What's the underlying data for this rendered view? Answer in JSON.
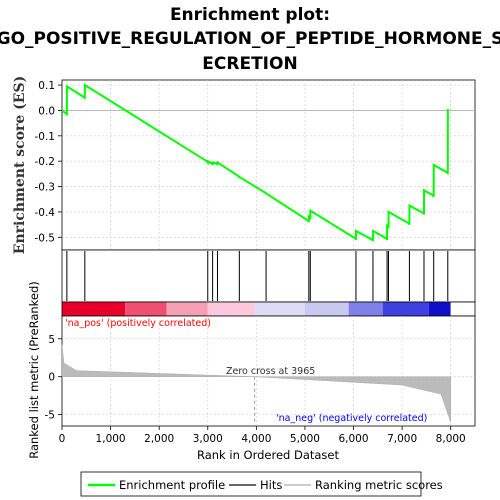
{
  "chart_data": {
    "type": "line",
    "title_line1": "Enrichment plot:",
    "title_line2": "GO_POSITIVE_REGULATION_OF_PEPTIDE_HORMONE_S",
    "title_line3": "ECRETION",
    "es_ylabel": "Enrichment score (ES)",
    "es_ylim": [
      -0.55,
      0.12
    ],
    "es_yticks": [
      "0.1",
      "0.0",
      "-0.1",
      "-0.2",
      "-0.3",
      "-0.4",
      "-0.5"
    ],
    "es_ytick_values": [
      0.1,
      0.0,
      -0.1,
      -0.2,
      -0.3,
      -0.4,
      -0.5
    ],
    "rank_ylabel": "Ranked list metric (PreRanked)",
    "rank_ylim": [
      -6.5,
      8
    ],
    "rank_yticks": [
      "5",
      "0",
      "-5"
    ],
    "rank_ytick_values": [
      5,
      0,
      -5
    ],
    "xlabel": "Rank in Ordered Dataset",
    "xlim": [
      0,
      8500
    ],
    "xticks": [
      "0",
      "1,000",
      "2,000",
      "3,000",
      "4,000",
      "5,000",
      "6,000",
      "7,000",
      "8,000"
    ],
    "xtick_values": [
      0,
      1000,
      2000,
      3000,
      4000,
      5000,
      6000,
      7000,
      8000
    ],
    "n_genes": 8000,
    "hits": [
      100,
      470,
      3000,
      3100,
      3200,
      3650,
      4200,
      5080,
      5110,
      6050,
      6400,
      6690,
      6720,
      7150,
      7450,
      7650,
      7940
    ],
    "es_curve": {
      "x": [
        0,
        100,
        101,
        470,
        471,
        2980,
        3000,
        3001,
        3090,
        3100,
        3101,
        3190,
        3200,
        3201,
        3640,
        3650,
        3651,
        4190,
        4200,
        4201,
        5070,
        5080,
        5081,
        5100,
        5110,
        5111,
        6040,
        6050,
        6051,
        6390,
        6400,
        6401,
        6680,
        6690,
        6691,
        6710,
        6720,
        6721,
        7140,
        7150,
        7151,
        7440,
        7450,
        7451,
        7640,
        7650,
        7651,
        7930,
        7940,
        7941
      ],
      "es": [
        0.0,
        -0.015,
        0.095,
        0.05,
        0.1,
        -0.2,
        -0.205,
        -0.2,
        -0.21,
        -0.215,
        -0.205,
        -0.21,
        -0.215,
        -0.205,
        -0.26,
        -0.265,
        -0.262,
        -0.325,
        -0.33,
        -0.327,
        -0.435,
        -0.44,
        -0.42,
        -0.425,
        -0.43,
        -0.395,
        -0.505,
        -0.51,
        -0.475,
        -0.51,
        -0.515,
        -0.475,
        -0.505,
        -0.51,
        -0.455,
        -0.46,
        -0.465,
        -0.4,
        -0.445,
        -0.45,
        -0.375,
        -0.405,
        -0.41,
        -0.315,
        -0.335,
        -0.34,
        -0.215,
        -0.245,
        -0.25,
        0.005
      ]
    },
    "zero_cross_label": "Zero cross at 3965",
    "zero_cross": 3965,
    "pos_label": "'na_pos' (positively correlated)",
    "neg_label": "'na_neg' (negatively correlated)",
    "legend": [
      "Enrichment profile",
      "Hits",
      "Ranking metric scores"
    ],
    "colors": {
      "profile": "#00ff00",
      "hits": "#000000",
      "metric": "#bbbbbb",
      "pos_text": "#ff0000",
      "neg_text": "#0000ff",
      "grid": "#cccccc"
    }
  }
}
